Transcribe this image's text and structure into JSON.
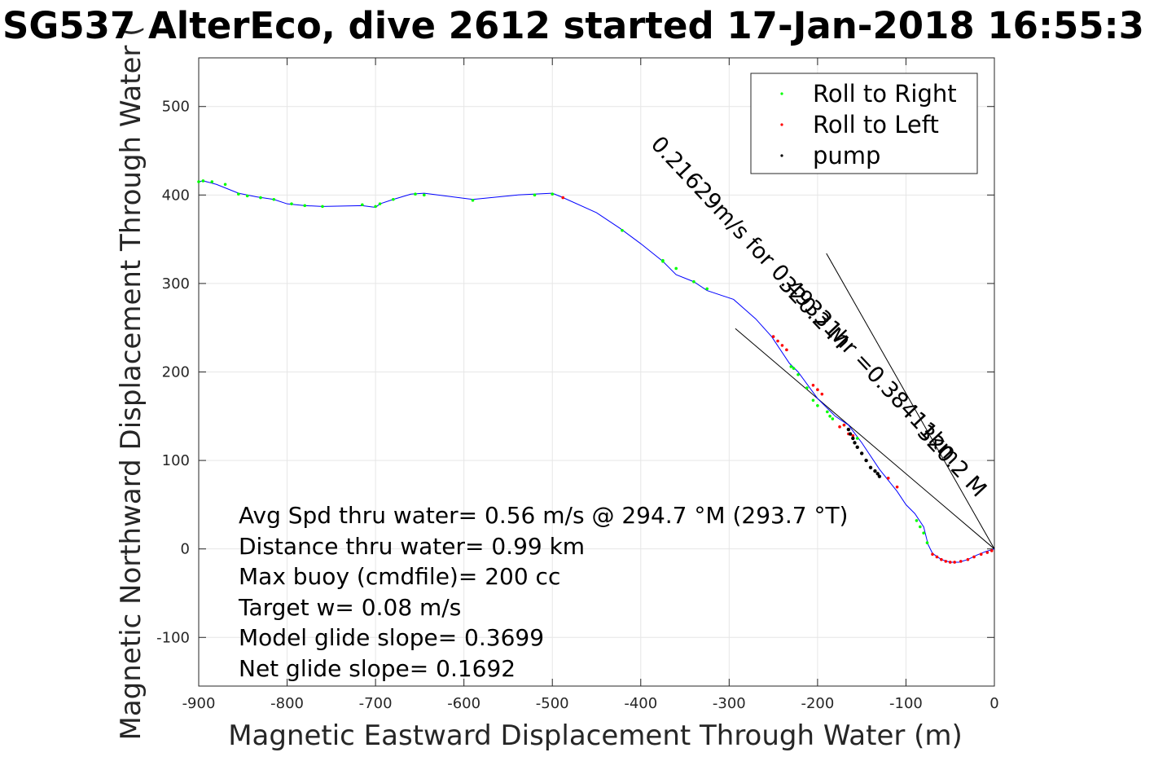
{
  "chart_data": {
    "type": "line",
    "title": "SG537 AlterEco, dive 2612 started 17-Jan-2018 16:55:3",
    "xlabel": "Magnetic Eastward Displacement Through Water (m)",
    "ylabel": "Magnetic Northward Displacement Through Water (",
    "xlim": [
      -900,
      0
    ],
    "ylim": [
      -155,
      555
    ],
    "xticks": [
      -900,
      -800,
      -700,
      -600,
      -500,
      -400,
      -300,
      -200,
      -100,
      0
    ],
    "yticks": [
      -100,
      0,
      100,
      200,
      300,
      400,
      500
    ],
    "grid": true,
    "legend_position": "top-right",
    "track": {
      "color": "#0000ff",
      "x": [
        0,
        -10,
        -20,
        -30,
        -40,
        -50,
        -60,
        -70,
        -75,
        -80,
        -90,
        -100,
        -110,
        -130,
        -150,
        -165,
        -180,
        -200,
        -222,
        -232,
        -252,
        -270,
        -295,
        -325,
        -340,
        -360,
        -375,
        -400,
        -423,
        -450,
        -490,
        -500,
        -540,
        -590,
        -645,
        -660,
        -680,
        -695,
        -700,
        -715,
        -760,
        -780,
        -800,
        -815,
        -835,
        -855,
        -880,
        -895,
        -900
      ],
      "y": [
        0,
        -3,
        -7,
        -12,
        -15,
        -15,
        -12,
        -5,
        5,
        25,
        40,
        50,
        65,
        90,
        120,
        140,
        150,
        170,
        200,
        210,
        240,
        260,
        282,
        292,
        302,
        310,
        325,
        345,
        362,
        380,
        398,
        402,
        400,
        395,
        402,
        401,
        395,
        390,
        386,
        388,
        387,
        388,
        390,
        395,
        398,
        402,
        412,
        416,
        415
      ]
    },
    "series": [
      {
        "name": "Roll to Right",
        "color": "#00ff00",
        "x": [
          -76,
          -80,
          -84,
          -88,
          -155,
          -170,
          -183,
          -186,
          -189,
          -200,
          -205,
          -212,
          -222,
          -227,
          -230,
          -375,
          -360,
          -340,
          -325,
          -375,
          -421,
          -500,
          -520,
          -590,
          -645,
          -655,
          -680,
          -695,
          -700,
          -715,
          -760,
          -780,
          -795,
          -815,
          -830,
          -845,
          -855,
          -870,
          -885,
          -895,
          -900
        ],
        "y": [
          7,
          18,
          25,
          32,
          125,
          140,
          147,
          150,
          155,
          162,
          168,
          182,
          197,
          204,
          206,
          325,
          317,
          302,
          294,
          326,
          360,
          401,
          400,
          394,
          400,
          401,
          395,
          390,
          387,
          389,
          387,
          388,
          390,
          395,
          397,
          399,
          401,
          412,
          415,
          416,
          415
        ]
      },
      {
        "name": "Roll to Left",
        "color": "#ff0000",
        "x": [
          -3,
          -8,
          -15,
          -23,
          -30,
          -38,
          -45,
          -50,
          -55,
          -60,
          -65,
          -70,
          -170,
          -175,
          -195,
          -200,
          -205,
          -235,
          -240,
          -245,
          -250,
          -120,
          -110,
          -165,
          -160,
          -488
        ],
        "y": [
          -2,
          -4,
          -6,
          -9,
          -12,
          -14,
          -15,
          -15,
          -14,
          -12,
          -9,
          -6,
          140,
          138,
          175,
          180,
          185,
          225,
          230,
          235,
          240,
          80,
          70,
          130,
          128,
          397
        ]
      },
      {
        "name": "pump",
        "color": "#000000",
        "x": [
          -130,
          -132,
          -135,
          -140,
          -145,
          -150,
          -155,
          -158,
          -160,
          -163,
          -165
        ],
        "y": [
          82,
          85,
          88,
          92,
          100,
          108,
          115,
          120,
          125,
          130,
          135
        ]
      }
    ],
    "reference_lines": [
      {
        "x": [
          0,
          -293
        ],
        "y": [
          0,
          249
        ]
      },
      {
        "x": [
          0,
          -190
        ],
        "y": [
          0,
          334
        ]
      }
    ],
    "rotated_labels": [
      "0.21629m/s for 0.49331hr =0.38411km",
      "320.2 M",
      "320.2 M"
    ],
    "annotations": [
      "Avg Spd thru water=  0.56 m/s @ 294.7 °M (293.7 °T)",
      "Distance thru water=  0.99 km",
      "Max buoy (cmdfile)= 200 cc",
      "Target w= 0.08 m/s",
      "Model glide slope= 0.3699",
      "Net glide slope= 0.1692"
    ]
  }
}
